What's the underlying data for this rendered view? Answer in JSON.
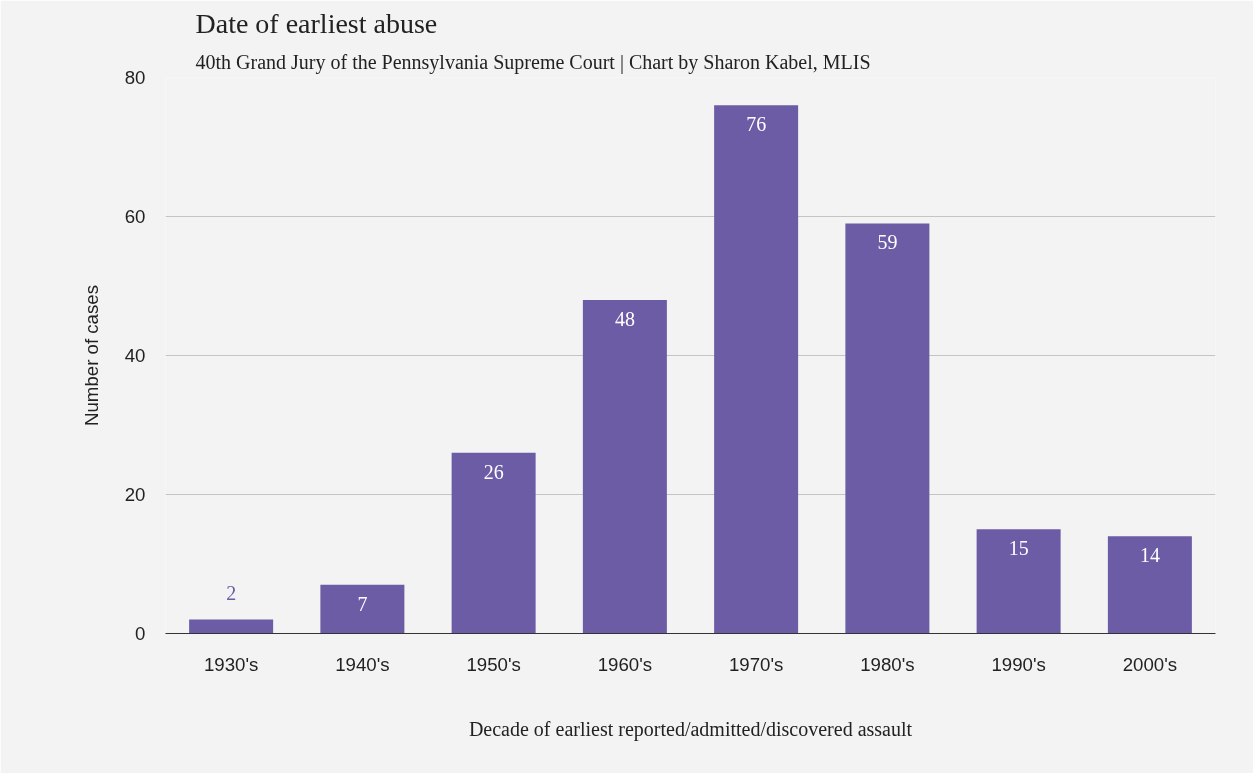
{
  "chart_data": {
    "type": "bar",
    "title": "Date of earliest abuse",
    "subtitle": "40th Grand Jury of the Pennsylvania Supreme Court | Chart by Sharon Kabel, MLIS",
    "xlabel": "Decade of earliest reported/admitted/discovered assault",
    "ylabel": "Number of cases",
    "categories": [
      "1930's",
      "1940's",
      "1950's",
      "1960's",
      "1970's",
      "1980's",
      "1990's",
      "2000's"
    ],
    "values": [
      2,
      7,
      26,
      48,
      76,
      59,
      15,
      14
    ],
    "color": "#6b5ca5",
    "ylim": [
      0,
      80
    ],
    "yticks": [
      0,
      20,
      40,
      60,
      80
    ],
    "grid": "y",
    "data_labels": true
  }
}
